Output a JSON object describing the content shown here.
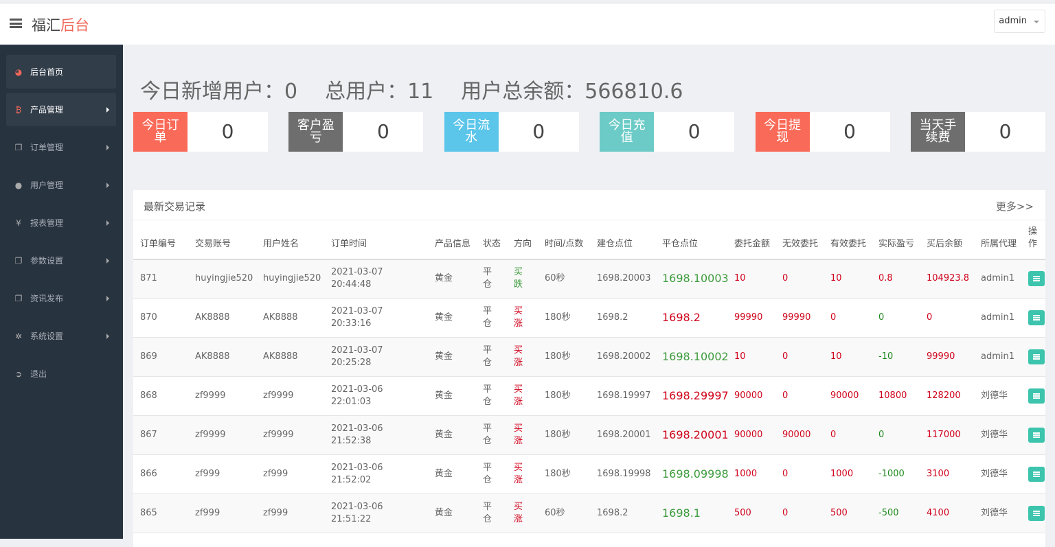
{
  "header": {
    "brand_main": "福汇",
    "brand_accent": "后台",
    "user": "admin"
  },
  "sidebar": {
    "items": [
      {
        "label": "后台首页",
        "icon": "dashboard-icon",
        "active": true,
        "arrow": false
      },
      {
        "label": "产品管理",
        "icon": "bitcoin-icon",
        "active": true,
        "arrow": true
      },
      {
        "label": "订单管理",
        "icon": "copy-icon",
        "active": false,
        "arrow": true
      },
      {
        "label": "用户管理",
        "icon": "user-icon",
        "active": false,
        "arrow": true
      },
      {
        "label": "报表管理",
        "icon": "yen-icon",
        "active": false,
        "arrow": true
      },
      {
        "label": "参数设置",
        "icon": "copy-icon",
        "active": false,
        "arrow": true
      },
      {
        "label": "资讯发布",
        "icon": "copy-icon",
        "active": false,
        "arrow": true
      },
      {
        "label": "系统设置",
        "icon": "gears-icon",
        "active": false,
        "arrow": true
      },
      {
        "label": "退出",
        "icon": "sign-out-icon",
        "active": false,
        "arrow": false
      }
    ]
  },
  "summary": {
    "new_users": "今日新增用户：0",
    "total_users": "总用户：11",
    "total_balance": "用户总余额：566810.6"
  },
  "stats": [
    {
      "label": "今日订单",
      "value": "0",
      "color": "#f96a58"
    },
    {
      "label": "客户盈亏",
      "value": "0",
      "color": "#6e6e6e"
    },
    {
      "label": "今日流水",
      "value": "0",
      "color": "#5bc5ea"
    },
    {
      "label": "今日充值",
      "value": "0",
      "color": "#6ccbc6"
    },
    {
      "label": "今日提现",
      "value": "0",
      "color": "#f96a58"
    },
    {
      "label": "当天手续费",
      "value": "0",
      "color": "#6e6e6e"
    }
  ],
  "trades": {
    "title": "最新交易记录",
    "more": "更多>>",
    "columns": [
      "订单编号",
      "交易账号",
      "用户姓名",
      "订单时间",
      "产品信息",
      "状态",
      "方向",
      "时间/点数",
      "建仓点位",
      "平仓点位",
      "委托金额",
      "无效委托",
      "有效委托",
      "实际盈亏",
      "买后余额",
      "所属代理",
      "操作"
    ],
    "rows": [
      {
        "id": "871",
        "account": "huyingjie520",
        "name": "huyingjie520",
        "date": "2021-03-07",
        "time": "20:44:48",
        "product": "黄金",
        "status": "平仓",
        "dir": "买跌",
        "dir_color": "green",
        "period": "60秒",
        "open": "1698.20003",
        "close": "1698.10003",
        "close_color": "green",
        "amount": "10",
        "invalid": "0",
        "valid": "10",
        "pnl": "0.8",
        "pnl_color": "red",
        "balance": "104923.8",
        "agent": "admin1"
      },
      {
        "id": "870",
        "account": "AK8888",
        "name": "AK8888",
        "date": "2021-03-07",
        "time": "20:33:16",
        "product": "黄金",
        "status": "平仓",
        "dir": "买涨",
        "dir_color": "red",
        "period": "180秒",
        "open": "1698.2",
        "close": "1698.2",
        "close_color": "red",
        "amount": "99990",
        "invalid": "99990",
        "valid": "0",
        "pnl": "0",
        "pnl_color": "dgreen",
        "balance": "0",
        "agent": "admin1"
      },
      {
        "id": "869",
        "account": "AK8888",
        "name": "AK8888",
        "date": "2021-03-07",
        "time": "20:25:28",
        "product": "黄金",
        "status": "平仓",
        "dir": "买涨",
        "dir_color": "red",
        "period": "180秒",
        "open": "1698.20002",
        "close": "1698.10002",
        "close_color": "green",
        "amount": "10",
        "invalid": "0",
        "valid": "10",
        "pnl": "-10",
        "pnl_color": "dgreen",
        "balance": "99990",
        "agent": "admin1"
      },
      {
        "id": "868",
        "account": "zf9999",
        "name": "zf9999",
        "date": "2021-03-06",
        "time": "22:01:03",
        "product": "黄金",
        "status": "平仓",
        "dir": "买涨",
        "dir_color": "red",
        "period": "180秒",
        "open": "1698.19997",
        "close": "1698.29997",
        "close_color": "red",
        "amount": "90000",
        "invalid": "0",
        "valid": "90000",
        "pnl": "10800",
        "pnl_color": "red",
        "balance": "128200",
        "agent": "刘德华"
      },
      {
        "id": "867",
        "account": "zf9999",
        "name": "zf9999",
        "date": "2021-03-06",
        "time": "21:52:38",
        "product": "黄金",
        "status": "平仓",
        "dir": "买涨",
        "dir_color": "red",
        "period": "180秒",
        "open": "1698.20001",
        "close": "1698.20001",
        "close_color": "red",
        "amount": "90000",
        "invalid": "90000",
        "valid": "0",
        "pnl": "0",
        "pnl_color": "dgreen",
        "balance": "117000",
        "agent": "刘德华"
      },
      {
        "id": "866",
        "account": "zf999",
        "name": "zf999",
        "date": "2021-03-06",
        "time": "21:52:02",
        "product": "黄金",
        "status": "平仓",
        "dir": "买涨",
        "dir_color": "red",
        "period": "180秒",
        "open": "1698.19998",
        "close": "1698.09998",
        "close_color": "green",
        "amount": "1000",
        "invalid": "0",
        "valid": "1000",
        "pnl": "-1000",
        "pnl_color": "dgreen",
        "balance": "3100",
        "agent": "刘德华"
      },
      {
        "id": "865",
        "account": "zf999",
        "name": "zf999",
        "date": "2021-03-06",
        "time": "21:51:22",
        "product": "黄金",
        "status": "平仓",
        "dir": "买涨",
        "dir_color": "red",
        "period": "60秒",
        "open": "1698.2",
        "close": "1698.1",
        "close_color": "green",
        "amount": "500",
        "invalid": "0",
        "valid": "500",
        "pnl": "-500",
        "pnl_color": "dgreen",
        "balance": "4100",
        "agent": "刘德华"
      }
    ]
  }
}
